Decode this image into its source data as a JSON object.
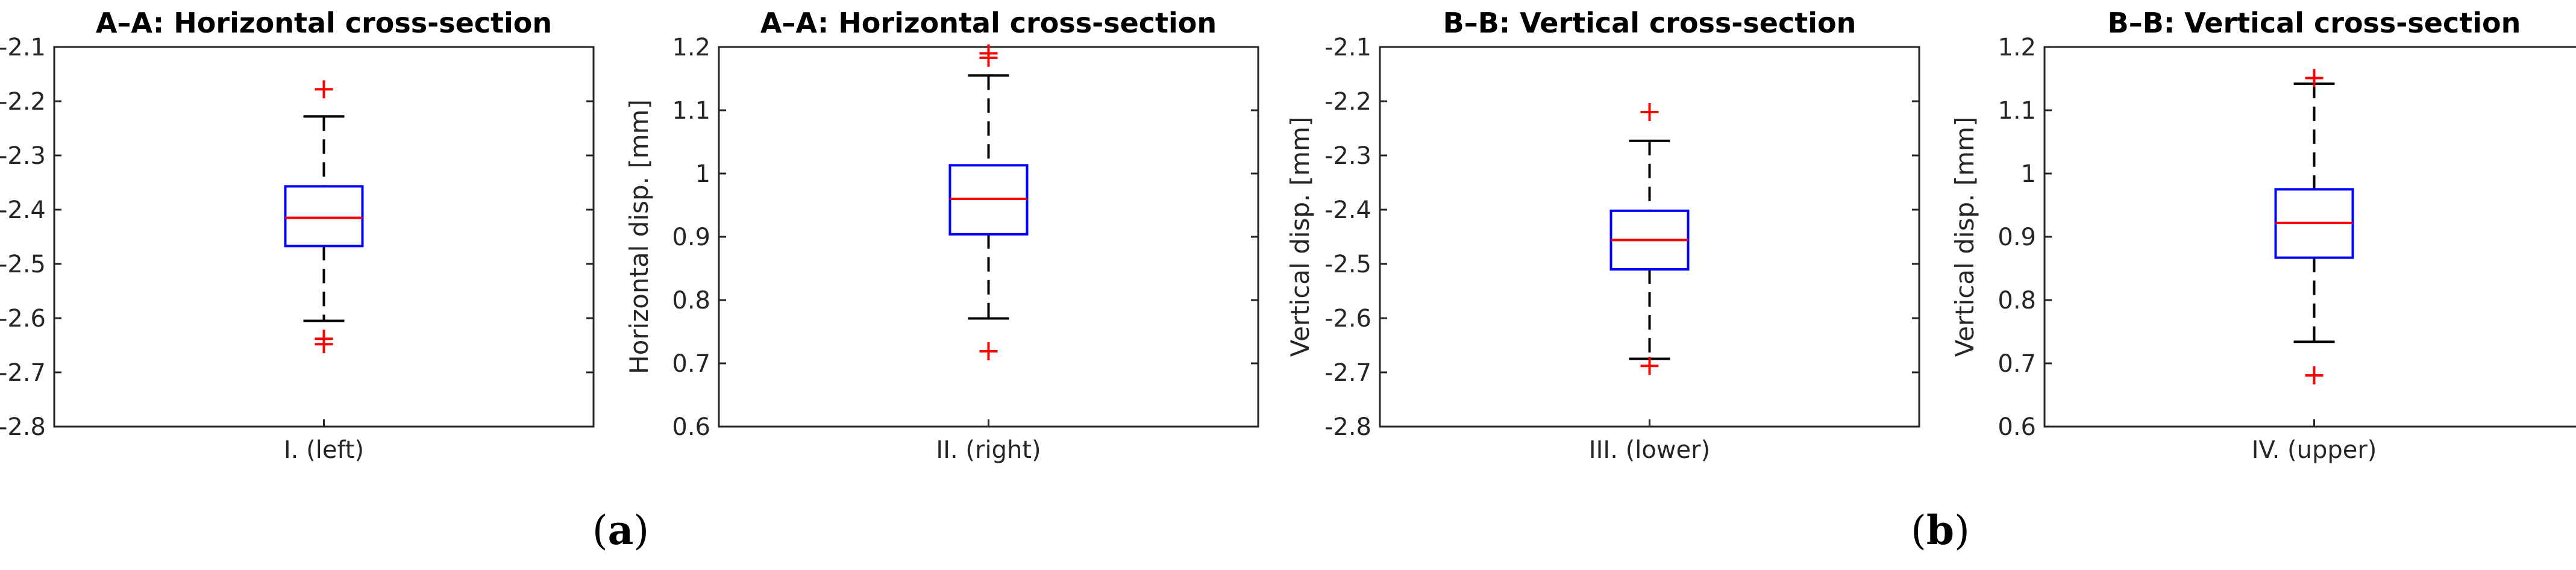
{
  "colors": {
    "box": "#0000ff",
    "median": "#ff0000",
    "whisker": "#000000",
    "outlier": "#ff0000",
    "axes": "#262626"
  },
  "subfigure_labels": [
    {
      "open": "(",
      "letter": "a",
      "close": ")"
    },
    {
      "open": "(",
      "letter": "b",
      "close": ")"
    }
  ],
  "chart_data": [
    {
      "type": "box",
      "title": "A–A: Horizontal cross-section",
      "ylabel": "Horizontal disp. [mm]",
      "ylim": [
        -2.8,
        -2.1
      ],
      "yticks": [
        "-2.1",
        "-2.2",
        "-2.3",
        "-2.4",
        "-2.5",
        "-2.6",
        "-2.7",
        "-2.8"
      ],
      "category": "I. (left)",
      "stats": {
        "whisker_high": -2.228,
        "q3": -2.357,
        "median": -2.415,
        "q1": -2.467,
        "whisker_low": -2.605
      },
      "outliers": [
        -2.178,
        -2.638,
        -2.648
      ]
    },
    {
      "type": "box",
      "title": "A–A: Horizontal cross-section",
      "ylabel": "Horizontal disp. [mm]",
      "ylim": [
        0.6,
        1.2
      ],
      "yticks": [
        "1.2",
        "1.1",
        "1",
        "0.9",
        "0.8",
        "0.7",
        "0.6"
      ],
      "category": "II. (right)",
      "stats": {
        "whisker_high": 1.155,
        "q3": 1.013,
        "median": 0.96,
        "q1": 0.904,
        "whisker_low": 0.771
      },
      "outliers": [
        1.19,
        1.183,
        0.719
      ]
    },
    {
      "type": "box",
      "title": "B–B: Vertical cross-section",
      "ylabel": "Vertical disp. [mm]",
      "ylim": [
        -2.8,
        -2.1
      ],
      "yticks": [
        "-2.1",
        "-2.2",
        "-2.3",
        "-2.4",
        "-2.5",
        "-2.6",
        "-2.7",
        "-2.8"
      ],
      "category": "III. (lower)",
      "stats": {
        "whisker_high": -2.273,
        "q3": -2.402,
        "median": -2.456,
        "q1": -2.51,
        "whisker_low": -2.675
      },
      "outliers": [
        -2.22,
        -2.688
      ]
    },
    {
      "type": "box",
      "title": "B–B: Vertical cross-section",
      "ylabel": "Vertical disp. [mm]",
      "ylim": [
        0.6,
        1.2
      ],
      "yticks": [
        "1.2",
        "1.1",
        "1",
        "0.9",
        "0.8",
        "0.7",
        "0.6"
      ],
      "category": "IV. (upper)",
      "stats": {
        "whisker_high": 1.142,
        "q3": 0.975,
        "median": 0.922,
        "q1": 0.867,
        "whisker_low": 0.734
      },
      "outliers": [
        1.151,
        0.681
      ]
    }
  ]
}
